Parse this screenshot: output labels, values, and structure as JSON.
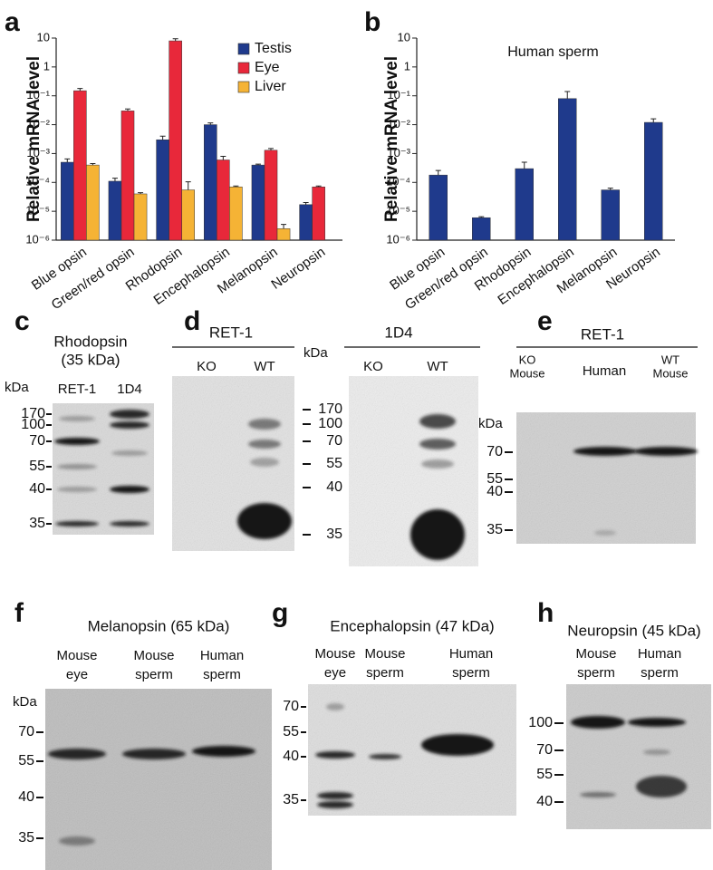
{
  "chart_data": [
    {
      "type": "bar",
      "panel": "a",
      "y_label": "Relative mRNA level",
      "categories": [
        "Blue opsin",
        "Green/red opsin",
        "Rhodopsin",
        "Encephalopsin",
        "Melanopsin",
        "Neuropsin"
      ],
      "series": [
        {
          "name": "Testis",
          "color": "#1f3a8c",
          "values": [
            0.0005,
            0.00011,
            0.003,
            0.01,
            0.0004,
            1.7e-05
          ],
          "errors": [
            0.00015,
            3e-05,
            0.001,
            0.0015,
            3e-05,
            3e-06
          ]
        },
        {
          "name": "Eye",
          "color": "#e8283a",
          "values": [
            0.15,
            0.03,
            8,
            0.0006,
            0.0013,
            7e-05
          ],
          "errors": [
            0.03,
            0.005,
            1.5,
            0.0002,
            0.0002,
            5e-06
          ]
        },
        {
          "name": "Liver",
          "color": "#f5b335",
          "values": [
            0.0004,
            4e-05,
            5.5e-05,
            7e-05,
            2.5e-06,
            null
          ],
          "errors": [
            5e-05,
            4e-06,
            5e-05,
            5e-06,
            1e-06,
            null
          ]
        }
      ],
      "log_scale": true,
      "ylim": [
        1e-06,
        10
      ],
      "yticks": [
        {
          "value": 1e-06,
          "label": "10⁻⁶"
        },
        {
          "value": 1e-05,
          "label": "10⁻⁵"
        },
        {
          "value": 0.0001,
          "label": "10⁻⁴"
        },
        {
          "value": 0.001,
          "label": "10⁻³"
        },
        {
          "value": 0.01,
          "label": "10⁻²"
        },
        {
          "value": 0.1,
          "label": "10⁻¹"
        },
        1,
        10
      ],
      "legend": "upper right"
    },
    {
      "type": "bar",
      "panel": "b",
      "y_label": "Relative mRNA level",
      "annotation": "Human sperm",
      "categories": [
        "Blue opsin",
        "Green/red opsin",
        "Rhodopsin",
        "Encephalopsin",
        "Melanopsin",
        "Neuropsin"
      ],
      "color": "#1f3a8c",
      "values": [
        0.00018,
        6e-06,
        0.0003,
        0.08,
        5.5e-05,
        0.012
      ],
      "errors": [
        8e-05,
        5e-07,
        0.0002,
        0.06,
        8e-06,
        0.004
      ],
      "log_scale": true,
      "ylim": [
        1e-06,
        10
      ],
      "yticks": [
        {
          "value": 1e-06,
          "label": "10⁻⁶"
        },
        {
          "value": 1e-05,
          "label": "10⁻⁵"
        },
        {
          "value": 0.0001,
          "label": "10⁻⁴"
        },
        {
          "value": 0.001,
          "label": "10⁻³"
        },
        {
          "value": 0.01,
          "label": "10⁻²"
        },
        {
          "value": 0.1,
          "label": "10⁻¹"
        },
        1,
        10
      ]
    }
  ],
  "blots": [
    {
      "letter": "c",
      "title": [
        "Rhodopsin",
        "(35 kDa)"
      ],
      "lanes": [
        [
          "RET-1"
        ],
        [
          "1D4"
        ]
      ],
      "unit": "kDa",
      "markers": [
        "170",
        "100",
        "70",
        "55",
        "40",
        "35"
      ]
    },
    {
      "letter": "d",
      "groups": [
        {
          "header": "RET-1",
          "lanes": [
            [
              "KO"
            ],
            [
              "WT"
            ]
          ]
        },
        {
          "header": "1D4",
          "lanes": [
            [
              "KO"
            ],
            [
              "WT"
            ]
          ]
        }
      ],
      "unit": "kDa",
      "markers": [
        "170",
        "100",
        "70",
        "55",
        "40",
        "35"
      ]
    },
    {
      "letter": "e",
      "groups": [
        {
          "header": "RET-1",
          "lanes": [
            [
              "KO",
              "Mouse"
            ],
            [
              "Human"
            ],
            [
              "WT",
              "Mouse"
            ]
          ]
        }
      ],
      "unit": "kDa",
      "markers": [
        "70",
        "55",
        "40",
        "35"
      ]
    },
    {
      "letter": "f",
      "title": [
        "Melanopsin (65 kDa)"
      ],
      "lanes": [
        [
          "Mouse",
          "eye"
        ],
        [
          "Mouse",
          "sperm"
        ],
        [
          "Human",
          "sperm"
        ]
      ],
      "unit": "kDa",
      "markers": [
        "70",
        "55",
        "40",
        "35"
      ]
    },
    {
      "letter": "g",
      "title": [
        "Encephalopsin (47 kDa)"
      ],
      "lanes": [
        [
          "Mouse",
          "eye"
        ],
        [
          "Mouse",
          "sperm"
        ],
        [
          "Human",
          "sperm"
        ]
      ],
      "markers": [
        "70",
        "55",
        "40",
        "35"
      ]
    },
    {
      "letter": "h",
      "title": [
        "Neuropsin (45 kDa)"
      ],
      "lanes": [
        [
          "Mouse",
          "sperm"
        ],
        [
          "Human",
          "sperm"
        ]
      ],
      "markers": [
        "100",
        "70",
        "55",
        "40"
      ]
    }
  ]
}
